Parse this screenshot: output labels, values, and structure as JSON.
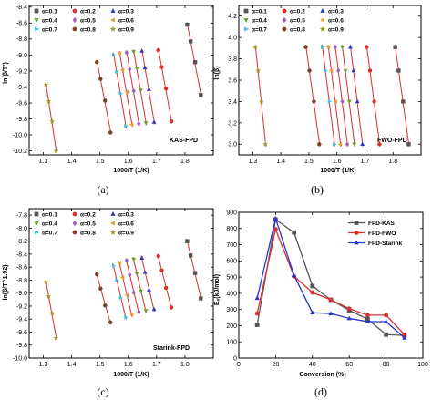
{
  "colors": {
    "fit_line": "#d9302c",
    "black": "#000000",
    "alpha_markers": [
      "#555555",
      "#d9302c",
      "#2a34c8",
      "#6b9e2b",
      "#a15fc4",
      "#ea9a28",
      "#3ec3d6",
      "#7b3f2a",
      "#a39a2c"
    ]
  },
  "chart_data": [
    {
      "id": "a",
      "type": "scatter",
      "panel_label": "(a)",
      "note": "KAS-FPD",
      "xlabel": "1000/T (1/K)",
      "ylabel": "ln(β/T²)",
      "xlim": [
        1.25,
        1.9
      ],
      "ylim": [
        -10.25,
        -8.38
      ],
      "xticks": [
        1.3,
        1.4,
        1.5,
        1.6,
        1.7,
        1.8
      ],
      "xtick_labels": [
        "1.3",
        "1.4",
        "1.5",
        "1.6",
        "1.7",
        "1.8"
      ],
      "yticks": [
        -10.2,
        -10.0,
        -9.8,
        -9.6,
        -9.4,
        -9.2,
        -9.0,
        -8.8,
        -8.6,
        -8.4
      ],
      "ytick_labels": [
        "-10.2",
        "-10.0",
        "-9.8",
        "-9.6",
        "-9.4",
        "-9.2",
        "-9.0",
        "-8.8",
        "-8.6",
        "-8.4"
      ],
      "legend": [
        "α=0.1",
        "α=0.2",
        "α=0.3",
        "α=0.4",
        "α=0.5",
        "α=0.6",
        "α=0.7",
        "α=0.8",
        "α=0.9"
      ],
      "legend_placement": "top-left",
      "series": [
        {
          "name": "α=0.9",
          "x": [
            1.309,
            1.319,
            1.331,
            1.345
          ],
          "y": [
            -9.37,
            -9.58,
            -9.83,
            -10.2
          ]
        },
        {
          "name": "α=0.8",
          "x": [
            1.489,
            1.502,
            1.518,
            1.537
          ],
          "y": [
            -9.09,
            -9.3,
            -9.57,
            -9.97
          ]
        },
        {
          "name": "α=0.7",
          "x": [
            1.548,
            1.559,
            1.573,
            1.591
          ],
          "y": [
            -9.0,
            -9.21,
            -9.48,
            -9.89
          ]
        },
        {
          "name": "α=0.6",
          "x": [
            1.569,
            1.58,
            1.595,
            1.612
          ],
          "y": [
            -8.98,
            -9.19,
            -9.46,
            -9.87
          ]
        },
        {
          "name": "α=0.5",
          "x": [
            1.594,
            1.605,
            1.619,
            1.637
          ],
          "y": [
            -8.97,
            -9.18,
            -9.45,
            -9.86
          ]
        },
        {
          "name": "α=0.4",
          "x": [
            1.619,
            1.63,
            1.644,
            1.662
          ],
          "y": [
            -8.96,
            -9.17,
            -9.44,
            -9.85
          ]
        },
        {
          "name": "α=0.3",
          "x": [
            1.648,
            1.659,
            1.673,
            1.691
          ],
          "y": [
            -8.95,
            -9.16,
            -9.43,
            -9.84
          ]
        },
        {
          "name": "α=0.2",
          "x": [
            1.706,
            1.718,
            1.733,
            1.752
          ],
          "y": [
            -8.94,
            -9.15,
            -9.42,
            -9.83
          ]
        },
        {
          "name": "α=0.1",
          "x": [
            1.808,
            1.82,
            1.836,
            1.856
          ],
          "y": [
            -8.62,
            -8.83,
            -9.09,
            -9.5
          ]
        }
      ]
    },
    {
      "id": "b",
      "type": "scatter",
      "panel_label": "(b)",
      "note": "FWO-FPD",
      "xlabel": "1000/T (1/K)",
      "ylabel": "ln(β)",
      "xlim": [
        1.25,
        1.9
      ],
      "ylim": [
        2.9,
        4.3
      ],
      "xticks": [
        1.3,
        1.4,
        1.5,
        1.6,
        1.7,
        1.8
      ],
      "xtick_labels": [
        "1.3",
        "1.4",
        "1.5",
        "1.6",
        "1.7",
        "1.8"
      ],
      "yticks": [
        3.0,
        3.2,
        3.4,
        3.6,
        3.8,
        4.0,
        4.2
      ],
      "ytick_labels": [
        "3.0",
        "3.2",
        "3.4",
        "3.6",
        "3.8",
        "4.0",
        "4.2"
      ],
      "legend": [
        "α=0.1",
        "α=0.2",
        "α=0.3",
        "α=0.4",
        "α=0.5",
        "α=0.6",
        "α=0.7",
        "α=0.8",
        "α=0.9"
      ],
      "legend_placement": "top-left",
      "series": [
        {
          "name": "α=0.9",
          "x": [
            1.309,
            1.319,
            1.331,
            1.345
          ],
          "y": [
            3.91,
            3.69,
            3.4,
            3.0
          ]
        },
        {
          "name": "α=0.8",
          "x": [
            1.489,
            1.502,
            1.518,
            1.537
          ],
          "y": [
            3.91,
            3.69,
            3.4,
            3.0
          ]
        },
        {
          "name": "α=0.7",
          "x": [
            1.548,
            1.559,
            1.573,
            1.591
          ],
          "y": [
            3.91,
            3.69,
            3.4,
            3.0
          ]
        },
        {
          "name": "α=0.6",
          "x": [
            1.569,
            1.58,
            1.595,
            1.612
          ],
          "y": [
            3.91,
            3.69,
            3.4,
            3.0
          ]
        },
        {
          "name": "α=0.5",
          "x": [
            1.594,
            1.605,
            1.619,
            1.637
          ],
          "y": [
            3.91,
            3.69,
            3.4,
            3.0
          ]
        },
        {
          "name": "α=0.4",
          "x": [
            1.619,
            1.63,
            1.644,
            1.662
          ],
          "y": [
            3.91,
            3.69,
            3.4,
            3.0
          ]
        },
        {
          "name": "α=0.3",
          "x": [
            1.648,
            1.659,
            1.673,
            1.691
          ],
          "y": [
            3.91,
            3.69,
            3.4,
            3.0
          ]
        },
        {
          "name": "α=0.2",
          "x": [
            1.706,
            1.718,
            1.733,
            1.752
          ],
          "y": [
            3.91,
            3.69,
            3.4,
            3.0
          ]
        },
        {
          "name": "α=0.1",
          "x": [
            1.808,
            1.82,
            1.836,
            1.856
          ],
          "y": [
            3.91,
            3.69,
            3.4,
            3.0
          ]
        }
      ]
    },
    {
      "id": "c",
      "type": "scatter",
      "panel_label": "(c)",
      "note": "Starink-FPD",
      "xlabel": "1000/T (1/K)",
      "ylabel": "ln(β/T^1.92)",
      "xlim": [
        1.25,
        1.9
      ],
      "ylim": [
        -10.0,
        -7.7
      ],
      "xticks": [
        1.3,
        1.4,
        1.5,
        1.6,
        1.7,
        1.8
      ],
      "xtick_labels": [
        "1.3",
        "1.4",
        "1.5",
        "1.6",
        "1.7",
        "1.8"
      ],
      "yticks": [
        -10.0,
        -9.8,
        -9.6,
        -9.4,
        -9.2,
        -9.0,
        -8.8,
        -8.6,
        -8.4,
        -8.2,
        -8.0,
        -7.8
      ],
      "ytick_labels": [
        "-10.0",
        "-9.8",
        "-9.6",
        "-9.4",
        "-9.2",
        "-9.0",
        "-8.8",
        "-8.6",
        "-8.4",
        "-8.2",
        "-8.0",
        "-7.8"
      ],
      "legend": [
        "α=0.1",
        "α=0.2",
        "α=0.3",
        "α=0.4",
        "α=0.5",
        "α=0.6",
        "α=0.7",
        "α=0.8",
        "α=0.9"
      ],
      "legend_placement": "top-left",
      "series": [
        {
          "name": "α=0.9",
          "x": [
            1.309,
            1.319,
            1.331,
            1.345
          ],
          "y": [
            -8.83,
            -9.05,
            -9.31,
            -9.69
          ]
        },
        {
          "name": "α=0.8",
          "x": [
            1.489,
            1.502,
            1.518,
            1.537
          ],
          "y": [
            -8.71,
            -8.93,
            -9.19,
            -9.45
          ]
        },
        {
          "name": "α=0.7",
          "x": [
            1.548,
            1.559,
            1.573,
            1.591
          ],
          "y": [
            -8.58,
            -8.8,
            -9.07,
            -9.37
          ]
        },
        {
          "name": "α=0.6",
          "x": [
            1.569,
            1.58,
            1.595,
            1.612
          ],
          "y": [
            -8.54,
            -8.76,
            -9.03,
            -9.33
          ]
        },
        {
          "name": "α=0.5",
          "x": [
            1.594,
            1.605,
            1.619,
            1.637
          ],
          "y": [
            -8.5,
            -8.72,
            -8.99,
            -9.29
          ]
        },
        {
          "name": "α=0.4",
          "x": [
            1.619,
            1.63,
            1.644,
            1.662
          ],
          "y": [
            -8.48,
            -8.7,
            -8.97,
            -9.27
          ]
        },
        {
          "name": "α=0.3",
          "x": [
            1.648,
            1.659,
            1.673,
            1.691
          ],
          "y": [
            -8.46,
            -8.68,
            -8.95,
            -9.25
          ]
        },
        {
          "name": "α=0.2",
          "x": [
            1.706,
            1.718,
            1.733,
            1.752
          ],
          "y": [
            -8.43,
            -8.65,
            -8.92,
            -9.22
          ]
        },
        {
          "name": "α=0.1",
          "x": [
            1.808,
            1.82,
            1.836,
            1.856
          ],
          "y": [
            -8.2,
            -8.42,
            -8.69,
            -9.08
          ]
        }
      ]
    },
    {
      "id": "d",
      "type": "line",
      "panel_label": "(d)",
      "xlabel": "Conversion (%)",
      "ylabel": "Eₐ(kJ/mol)",
      "xlim": [
        0,
        100
      ],
      "ylim": [
        0,
        900
      ],
      "xticks": [
        0,
        20,
        40,
        60,
        80,
        100
      ],
      "xtick_labels": [
        "0",
        "20",
        "40",
        "60",
        "80",
        "100"
      ],
      "yticks": [
        0,
        100,
        200,
        300,
        400,
        500,
        600,
        700,
        800,
        900
      ],
      "ytick_labels": [
        "0",
        "100",
        "200",
        "300",
        "400",
        "500",
        "600",
        "700",
        "800",
        "900"
      ],
      "legend_placement": "top-right",
      "series": [
        {
          "name": "FPD-KAS",
          "color": "#555555",
          "marker": "square",
          "x": [
            10,
            20,
            30,
            40,
            50,
            60,
            70,
            80,
            90
          ],
          "y": [
            205,
            855,
            775,
            445,
            360,
            295,
            240,
            145,
            140
          ]
        },
        {
          "name": "FPD-FWO",
          "color": "#d9302c",
          "marker": "circle",
          "x": [
            10,
            20,
            30,
            40,
            50,
            60,
            70,
            80,
            90
          ],
          "y": [
            275,
            795,
            505,
            405,
            360,
            305,
            265,
            265,
            145
          ]
        },
        {
          "name": "FPD-Starink",
          "color": "#2a34c8",
          "marker": "triangle",
          "x": [
            10,
            20,
            30,
            40,
            50,
            60,
            70,
            80,
            90
          ],
          "y": [
            370,
            862,
            510,
            280,
            275,
            245,
            225,
            225,
            125
          ]
        }
      ]
    }
  ]
}
